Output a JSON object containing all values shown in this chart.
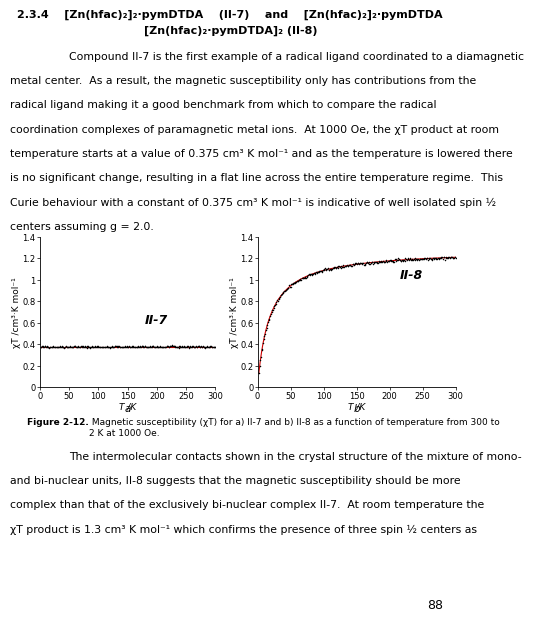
{
  "page_bg": "#ffffff",
  "heading_line1": "2.3.4    [Zn(hfac)₂]₂·pymDTDA    (II-7)    and    [Zn(hfac)₂]₂·pymDTDA",
  "heading_line2": "[Zn(hfac)₂·pymDTDA]₂ (II-8)",
  "para1_lines": [
    "Compound II-7 is the first example of a radical ligand coordinated to a diamagnetic",
    "metal center.  As a result, the magnetic susceptibility only has contributions from the",
    "radical ligand making it a good benchmark from which to compare the radical",
    "coordination complexes of paramagnetic metal ions.  At 1000 Oe, the χT product at room",
    "temperature starts at a value of 0.375 cm³ K mol⁻¹ and as the temperature is lowered there",
    "is no significant change, resulting in a flat line across the entire temperature regime.  This",
    "Curie behaviour with a constant of 0.375 cm³ K mol⁻¹ is indicative of well isolated spin ½",
    "centers assuming g = 2.0."
  ],
  "para1_indent_first": true,
  "ylabel": "χT /cm³·K mol⁻¹",
  "xlabel": "T /K",
  "plot_a_label": "II-7",
  "plot_b_label": "II-8",
  "plot_a_flat_value": 0.375,
  "plot_b_asymptote": 1.28,
  "plot_b_half_sat": 18.0,
  "ylim": [
    0,
    1.4
  ],
  "xlim": [
    0,
    300
  ],
  "xticks": [
    0,
    50,
    100,
    150,
    200,
    250,
    300
  ],
  "yticks": [
    0,
    0.2,
    0.4,
    0.6,
    0.8,
    1.0,
    1.2,
    1.4
  ],
  "ytick_labels": [
    "0",
    "0.2",
    "0.4",
    "0.6",
    "0.8",
    "1",
    "1.2",
    "1.4"
  ],
  "data_color_black": "#000000",
  "data_color_red": "#cc0000",
  "fig_label_a": "a",
  "fig_label_b": "b",
  "caption_bold": "Figure 2-12.",
  "caption_rest": " Magnetic susceptibility (χT) for a) II-7 and b) II-8 as a function of temperature from 300 to\n2 K at 1000 Oe.",
  "para2_lines": [
    "The intermolecular contacts shown in the crystal structure of the mixture of mono-",
    "and bi-nuclear units, II-8 suggests that the magnetic susceptibility should be more",
    "complex than that of the exclusively bi-nuclear complex II-7.  At room temperature the",
    "χT product is 1.3 cm³ K mol⁻¹ which confirms the presence of three spin ½ centers as"
  ],
  "page_number": "88",
  "text_fontsize": 7.8,
  "heading_fontsize": 8.0,
  "tick_fontsize": 6.0,
  "axis_label_fontsize": 6.5,
  "caption_fontsize": 6.5,
  "plot_label_fontsize": 9.0,
  "fig_ab_fontsize": 7.5,
  "pagenum_fontsize": 9.0
}
